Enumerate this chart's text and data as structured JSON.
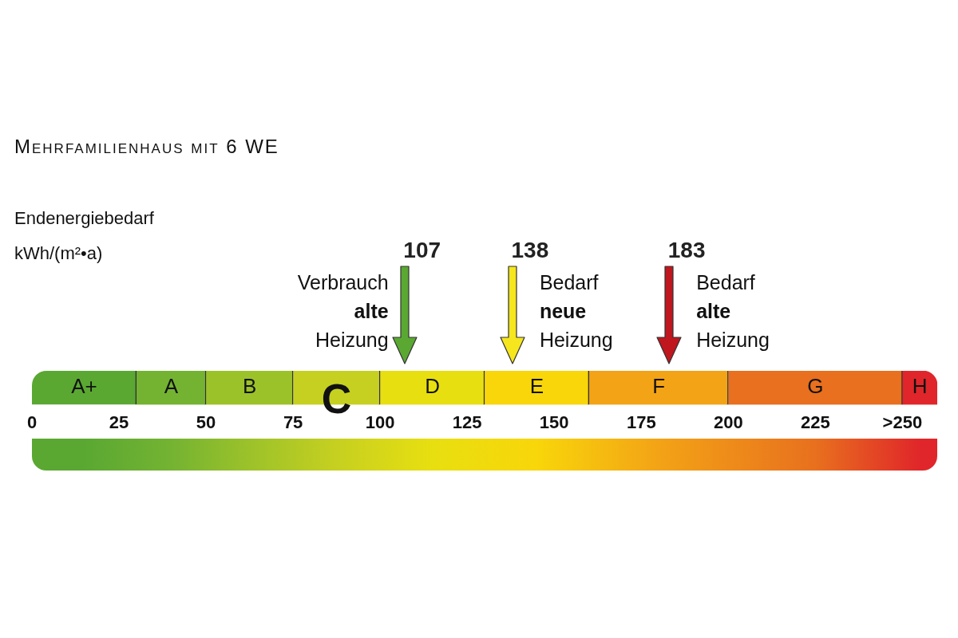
{
  "chart_data": {
    "type": "bar",
    "orientation": "horizontal",
    "stacked": true,
    "title": "Mehrfamilienhaus mit 6 WE",
    "categories": [
      null
    ],
    "xlim": [
      0,
      260
    ],
    "xticks": [
      0,
      25,
      50,
      75,
      100,
      125,
      150,
      175,
      200,
      225,
      {
        "value": 250,
        "label": ">250"
      }
    ],
    "series": [
      {
        "name": "A+",
        "color": "#5aa832",
        "values": [
          30
        ]
      },
      {
        "name": "A",
        "color": "#74b332",
        "values": [
          20
        ]
      },
      {
        "name": "B",
        "color": "#9cc22a",
        "values": [
          25
        ]
      },
      {
        "color": "#c6d020",
        "values": [
          25
        ]
      },
      {
        "name": "D",
        "color": "#e8df10",
        "values": [
          30
        ]
      },
      {
        "name": "E",
        "color": "#f8d60a",
        "values": [
          30
        ]
      },
      {
        "name": "F",
        "color": "#f3a316",
        "values": [
          40
        ]
      },
      {
        "name": "G",
        "color": "#e8701e",
        "values": [
          50
        ]
      },
      {
        "name": "H",
        "color": "#e0262a",
        "values": [
          10
        ]
      }
    ],
    "legend": false,
    "ref_lines": [
      {
        "axis": "x",
        "value": 107,
        "label": "107",
        "color": "#5aa832"
      },
      {
        "axis": "x",
        "value": 138,
        "label": "138",
        "color": "#f5e61e"
      },
      {
        "axis": "x",
        "value": 183,
        "label": "183",
        "color": "#c0161e"
      }
    ],
    "annotations": [
      "Endenergiebedarf\nkWh/(m²•a)",
      {
        "text": "Verbrauch\nalte\nHeizung",
        "x": 107
      },
      {
        "text": "Bedarf\nneue\nHeizung",
        "x": 138
      },
      {
        "text": "Bedarf\nalte\nHeizung",
        "x": 183
      },
      "C"
    ]
  }
}
